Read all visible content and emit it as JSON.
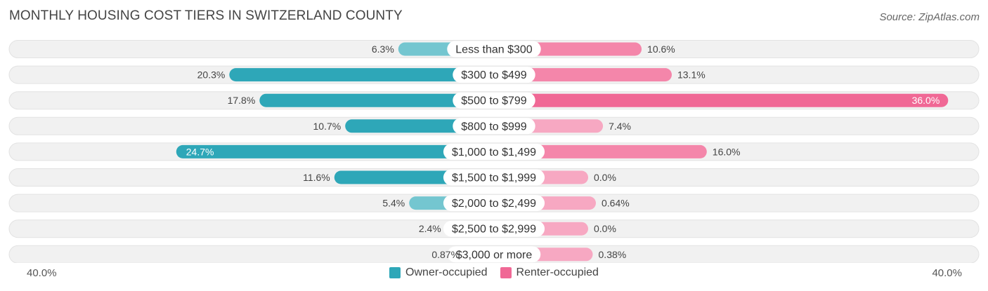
{
  "title": "MONTHLY HOUSING COST TIERS IN SWITZERLAND COUNTY",
  "source": "Source: ZipAtlas.com",
  "axis": {
    "left_label": "40.0%",
    "right_label": "40.0%"
  },
  "colors": {
    "owner": "#2ea7b8",
    "owner_light": "#74c6d0",
    "renter": "#f06895",
    "renter_light": "#f7a8c2",
    "row_bg": "#f1f1f1"
  },
  "legend": {
    "owner_label": "Owner-occupied",
    "renter_label": "Renter-occupied"
  },
  "chart_data": {
    "type": "bar",
    "orientation": "diverging-horizontal",
    "title": "MONTHLY HOUSING COST TIERS IN SWITZERLAND COUNTY",
    "xlim": [
      -40,
      40
    ],
    "categories": [
      "Less than $300",
      "$300 to $499",
      "$500 to $799",
      "$800 to $999",
      "$1,000 to $1,499",
      "$1,500 to $1,999",
      "$2,000 to $2,499",
      "$2,500 to $2,999",
      "$3,000 or more"
    ],
    "series": [
      {
        "name": "Owner-occupied",
        "side": "left",
        "values": [
          6.3,
          20.3,
          17.8,
          10.7,
          24.7,
          11.6,
          5.4,
          2.4,
          0.87
        ],
        "labels": [
          "6.3%",
          "20.3%",
          "17.8%",
          "10.7%",
          "24.7%",
          "11.6%",
          "5.4%",
          "2.4%",
          "0.87%"
        ]
      },
      {
        "name": "Renter-occupied",
        "side": "right",
        "values": [
          10.6,
          13.1,
          36.0,
          7.4,
          16.0,
          0.0,
          0.64,
          0.0,
          0.38
        ],
        "labels": [
          "10.6%",
          "13.1%",
          "36.0%",
          "7.4%",
          "16.0%",
          "0.0%",
          "0.64%",
          "0.0%",
          "0.38%"
        ]
      }
    ]
  }
}
